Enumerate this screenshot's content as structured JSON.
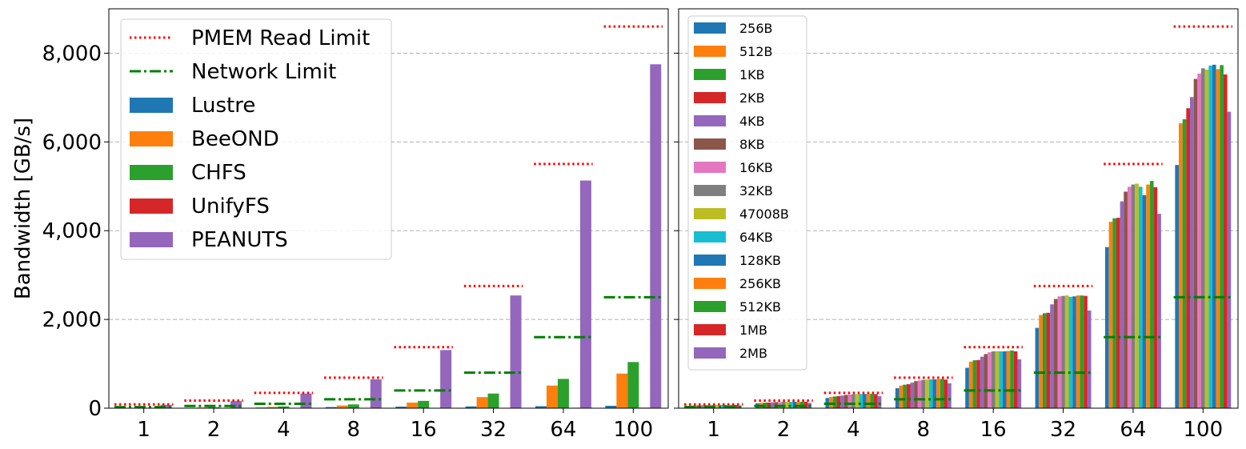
{
  "chart_data": [
    {
      "type": "bar",
      "ylabel": "Bandwidth [GB/s]",
      "ylim": [
        0,
        9000
      ],
      "yticks": [
        0,
        2000,
        4000,
        6000,
        8000
      ],
      "ytick_labels": [
        "0",
        "2,000",
        "4,000",
        "6,000",
        "8,000"
      ],
      "grid": "y-dashed",
      "legend_position": "top-left",
      "categories": [
        "1",
        "2",
        "4",
        "8",
        "16",
        "32",
        "64",
        "100"
      ],
      "series": [
        {
          "name": "Lustre",
          "color": "#1f77b4",
          "values": [
            5,
            8,
            15,
            25,
            35,
            40,
            45,
            55
          ]
        },
        {
          "name": "BeeOND",
          "color": "#ff7f0e",
          "values": [
            8,
            15,
            30,
            60,
            125,
            250,
            510,
            780
          ]
        },
        {
          "name": "CHFS",
          "color": "#2ca02c",
          "values": [
            10,
            20,
            40,
            85,
            165,
            330,
            660,
            1040
          ]
        },
        {
          "name": "UnifyFS",
          "color": "#d62728",
          "values": [
            2,
            3,
            4,
            5,
            6,
            8,
            10,
            12
          ]
        },
        {
          "name": "PEANUTS",
          "color": "#9467bd",
          "values": [
            75,
            160,
            330,
            650,
            1310,
            2540,
            5130,
            7750
          ]
        }
      ],
      "limits": [
        {
          "name": "PMEM Read Limit",
          "color": "#ff0000",
          "style": "dotted",
          "values": [
            86,
            172,
            344,
            688,
            1376,
            2752,
            5504,
            8600
          ]
        },
        {
          "name": "Network Limit",
          "color": "#008000",
          "style": "dashdot",
          "values": [
            25,
            50,
            100,
            200,
            400,
            800,
            1600,
            2500
          ]
        }
      ]
    },
    {
      "type": "bar",
      "ylim": [
        0,
        9000
      ],
      "grid": "y-dashed",
      "legend_position": "top-left",
      "categories": [
        "1",
        "2",
        "4",
        "8",
        "16",
        "32",
        "64",
        "100"
      ],
      "series": [
        {
          "name": "256B",
          "color": "#1f77b4",
          "values": [
            55,
            110,
            230,
            450,
            910,
            1810,
            3630,
            5480
          ]
        },
        {
          "name": "512B",
          "color": "#ff7f0e",
          "values": [
            60,
            120,
            255,
            510,
            1050,
            2100,
            4200,
            6420
          ]
        },
        {
          "name": "1KB",
          "color": "#2ca02c",
          "values": [
            62,
            125,
            265,
            530,
            1080,
            2140,
            4280,
            6510
          ]
        },
        {
          "name": "2KB",
          "color": "#d62728",
          "values": [
            63,
            127,
            270,
            540,
            1085,
            2150,
            4290,
            6760
          ]
        },
        {
          "name": "4KB",
          "color": "#9467bd",
          "values": [
            65,
            132,
            285,
            575,
            1160,
            2340,
            4660,
            7010
          ]
        },
        {
          "name": "8KB",
          "color": "#8c564b",
          "values": [
            68,
            137,
            300,
            610,
            1220,
            2460,
            4880,
            7420
          ]
        },
        {
          "name": "16KB",
          "color": "#e377c2",
          "values": [
            70,
            140,
            310,
            625,
            1260,
            2520,
            4990,
            7540
          ]
        },
        {
          "name": "32KB",
          "color": "#7f7f7f",
          "values": [
            72,
            143,
            315,
            640,
            1280,
            2530,
            5040,
            7660
          ]
        },
        {
          "name": "47008B",
          "color": "#bcbd22",
          "values": [
            72,
            144,
            318,
            645,
            1285,
            2540,
            5060,
            7630
          ]
        },
        {
          "name": "64KB",
          "color": "#17becf",
          "values": [
            72,
            144,
            320,
            650,
            1280,
            2510,
            4990,
            7720
          ]
        },
        {
          "name": "128KB",
          "color": "#1f77b4",
          "values": [
            73,
            145,
            320,
            650,
            1280,
            2520,
            4800,
            7740
          ]
        },
        {
          "name": "256KB",
          "color": "#ff7f0e",
          "values": [
            73,
            145,
            322,
            655,
            1290,
            2540,
            5040,
            7640
          ]
        },
        {
          "name": "512KB",
          "color": "#2ca02c",
          "values": [
            74,
            146,
            325,
            660,
            1300,
            2540,
            5120,
            7730
          ]
        },
        {
          "name": "1MB",
          "color": "#d62728",
          "values": [
            73,
            144,
            318,
            645,
            1280,
            2530,
            4980,
            7520
          ]
        },
        {
          "name": "2MB",
          "color": "#9467bd",
          "values": [
            60,
            120,
            270,
            560,
            1100,
            2200,
            4380,
            6680
          ]
        }
      ],
      "limits": [
        {
          "name": "PMEM Read Limit",
          "color": "#ff0000",
          "style": "dotted",
          "values": [
            86,
            172,
            344,
            688,
            1376,
            2752,
            5504,
            8600
          ]
        },
        {
          "name": "Network Limit",
          "color": "#008000",
          "style": "dashdot",
          "values": [
            25,
            50,
            100,
            200,
            400,
            800,
            1600,
            2500
          ]
        }
      ]
    }
  ]
}
